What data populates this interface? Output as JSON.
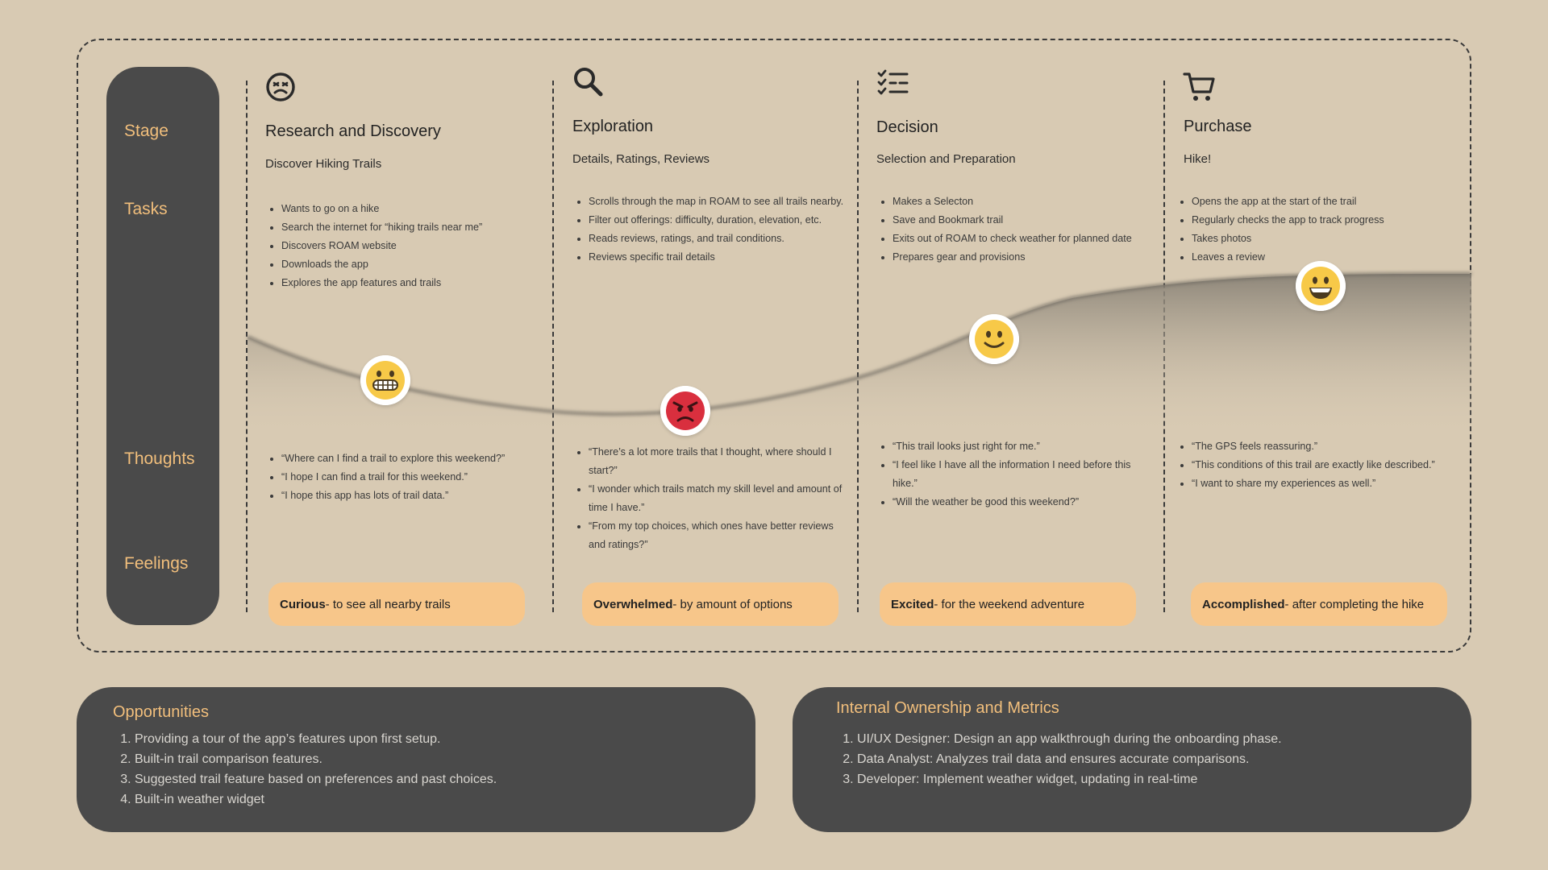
{
  "row_labels": {
    "stage": "Stage",
    "tasks": "Tasks",
    "thoughts": "Thoughts",
    "feelings": "Feelings"
  },
  "stages": [
    {
      "icon": "frustrated-face-icon",
      "title": "Research and Discovery",
      "subtitle": "Discover Hiking Trails",
      "tasks": [
        "Wants to go on a hike",
        "Search the internet for “hiking trails near me”",
        "Discovers ROAM website",
        "Downloads the app",
        "Explores the app features and trails"
      ],
      "thoughts": [
        "“Where can I find a trail to explore this weekend?”",
        "“I hope I can find a trail for this weekend.”",
        "“I hope this app has lots of trail data.”"
      ],
      "feeling_bold": "Curious",
      "feeling_rest": " - to see all nearby trails",
      "emotion": "grimacing-emoji"
    },
    {
      "icon": "search-icon",
      "title": "Exploration",
      "subtitle": "Details, Ratings, Reviews",
      "tasks": [
        "Scrolls through the map in ROAM to see all trails nearby.",
        "Filter out offerings: difficulty, duration, elevation, etc.",
        "Reads reviews, ratings, and trail conditions.",
        "Reviews specific trail details"
      ],
      "thoughts": [
        "“There’s a lot more trails that I thought, where should I start?”",
        "“I wonder which trails match my skill level and amount of time I have.”",
        "“From my top choices, which ones have better reviews and ratings?”"
      ],
      "feeling_bold": "Overwhelmed",
      "feeling_rest": " - by amount of options",
      "emotion": "angry-emoji"
    },
    {
      "icon": "checklist-icon",
      "title": "Decision",
      "subtitle": "Selection and Preparation",
      "tasks": [
        "Makes a Selecton",
        "Save and Bookmark trail",
        "Exits out of ROAM to check weather for planned date",
        "Prepares gear and provisions"
      ],
      "thoughts": [
        "“This trail looks just right for me.”",
        "“I feel like I have all the information I need before this hike.”",
        "“Will the weather be good this weekend?”"
      ],
      "feeling_bold": "Excited",
      "feeling_rest": "- for the weekend adventure",
      "emotion": "slight-smile-emoji"
    },
    {
      "icon": "shopping-cart-icon",
      "title": "Purchase",
      "subtitle": "Hike!",
      "tasks": [
        "Opens the app at the start of the trail",
        "Regularly checks the app to track progress",
        "Takes photos",
        "Leaves a review"
      ],
      "thoughts": [
        "“The GPS feels reassuring.”",
        "“This conditions of this trail are exactly like described.”",
        "“I want to share my experiences as well.”"
      ],
      "feeling_bold": "Accomplished",
      "feeling_rest": " - after completing the hike",
      "emotion": "big-smile-emoji"
    }
  ],
  "opportunities": {
    "title": "Opportunities",
    "items": [
      "Providing a tour of the app’s features upon first setup.",
      "Built-in trail comparison features.",
      "Suggested trail feature based on preferences and past choices.",
      "Built-in weather widget"
    ]
  },
  "ownership": {
    "title": "Internal Ownership and Metrics",
    "items": [
      "UI/UX Designer: Design an app walkthrough during the onboarding phase.",
      "Data Analyst: Analyzes trail data and ensures accurate comparisons.",
      "Developer: Implement weather widget, updating in real-time"
    ]
  },
  "colors": {
    "background": "#d8cab3",
    "dark_panel": "#4a4a4a",
    "accent": "#f2bf7c",
    "feeling_pill": "#f7c68a",
    "emoji_yellow": "#f7c948",
    "emoji_red": "#d92f3e"
  }
}
